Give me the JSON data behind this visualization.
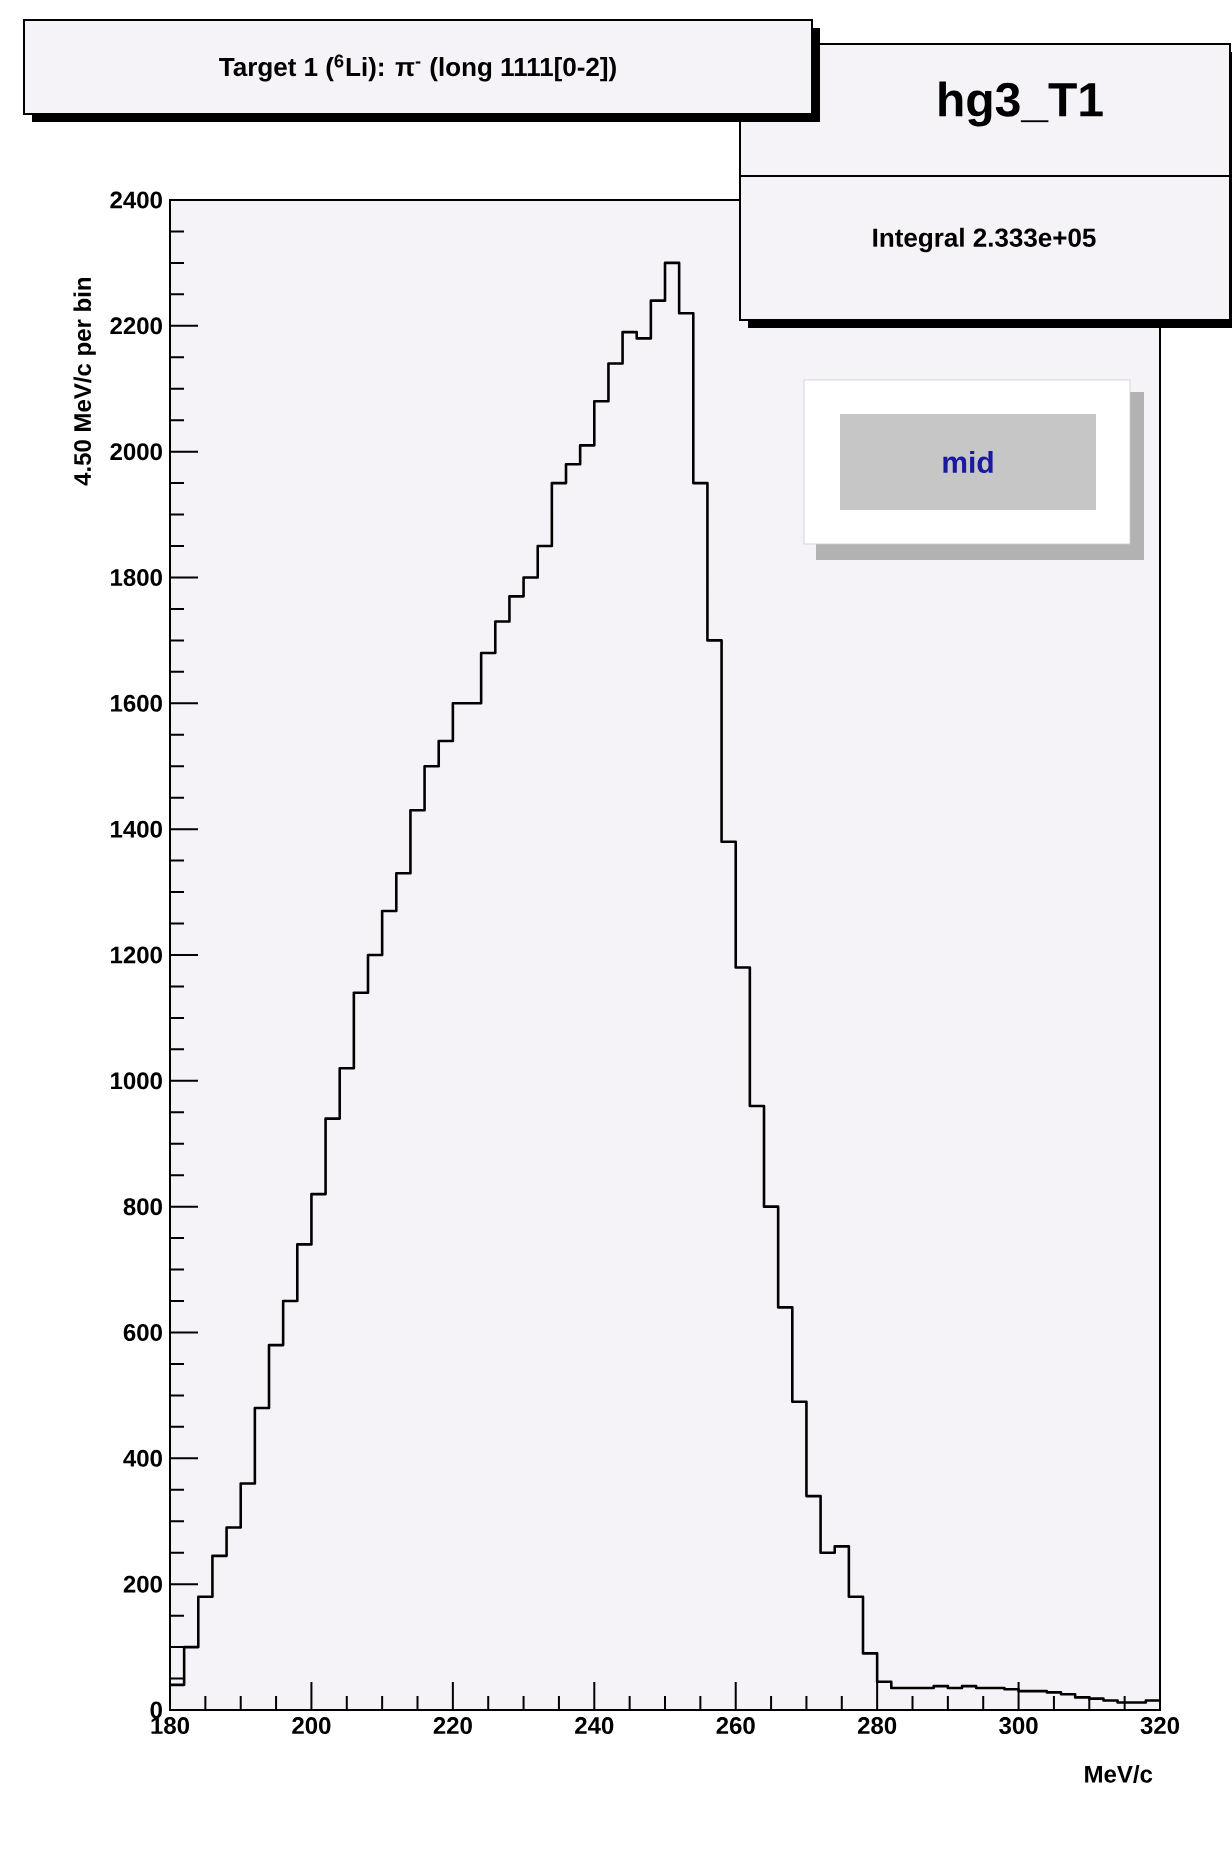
{
  "chart_data": {
    "type": "histogram",
    "title": "Target 1 ($^{6}$Li): π$^{-}$ (long 1111[0-2])",
    "xlabel": "MeV/c",
    "ylabel": "4.50 MeV/c per bin",
    "annotations": [
      "hg3_T1",
      "Integral 2.333e+05",
      "mid"
    ],
    "bins": [
      180,
      182,
      184,
      186,
      188,
      190,
      192,
      194,
      196,
      198,
      200,
      202,
      204,
      206,
      208,
      210,
      212,
      214,
      216,
      218,
      220,
      222,
      224,
      226,
      228,
      230,
      232,
      234,
      236,
      238,
      240,
      242,
      244,
      246,
      248,
      250,
      252,
      254,
      256,
      258,
      260,
      262,
      264,
      266,
      268,
      270,
      272,
      274,
      276,
      278,
      280,
      282,
      284,
      286,
      288,
      290,
      292,
      294,
      296,
      298,
      300,
      302,
      304,
      306,
      308,
      310,
      312,
      314,
      316,
      318,
      320
    ],
    "values": [
      40,
      100,
      180,
      245,
      290,
      360,
      480,
      580,
      650,
      740,
      820,
      940,
      1020,
      1140,
      1200,
      1270,
      1330,
      1430,
      1500,
      1540,
      1600,
      1600,
      1680,
      1730,
      1770,
      1800,
      1850,
      1950,
      1980,
      2010,
      2080,
      2140,
      2190,
      2180,
      2240,
      2300,
      2220,
      1950,
      1700,
      1380,
      1180,
      960,
      800,
      640,
      490,
      340,
      250,
      260,
      180,
      90,
      45,
      35,
      35,
      35,
      38,
      35,
      38,
      35,
      35,
      33,
      30,
      30,
      28,
      25,
      20,
      18,
      15,
      12,
      12,
      15
    ],
    "color": "#000000",
    "xlim": [
      180,
      320
    ],
    "xticks": [
      180,
      200,
      220,
      240,
      260,
      280,
      300,
      320
    ],
    "ylim": [
      0,
      2400
    ],
    "yticks": [
      0,
      200,
      400,
      600,
      800,
      1000,
      1200,
      1400,
      1600,
      1800,
      2000,
      2200,
      2400
    ],
    "grid": false
  }
}
